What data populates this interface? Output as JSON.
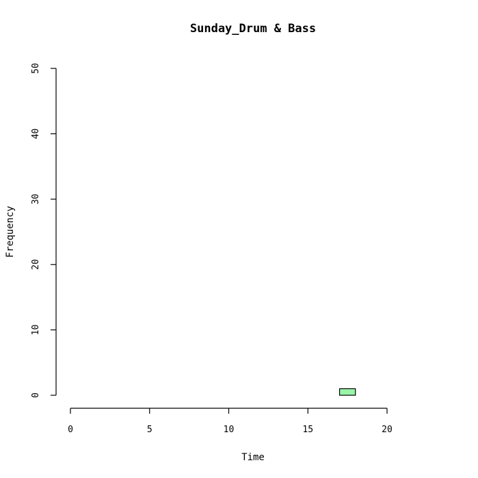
{
  "chart_data": {
    "type": "bar",
    "title": "Sunday_Drum & Bass",
    "xlabel": "Time",
    "ylabel": "Frequency",
    "xlim": [
      0,
      24
    ],
    "ylim": [
      0,
      50
    ],
    "x_ticks": [
      "0",
      "5",
      "10",
      "15",
      "20"
    ],
    "y_ticks": [
      "0",
      "10",
      "20",
      "30",
      "40",
      "50"
    ],
    "bins": [
      {
        "x0": 0,
        "x1": 1,
        "count": 0
      },
      {
        "x0": 1,
        "x1": 2,
        "count": 0
      },
      {
        "x0": 2,
        "x1": 3,
        "count": 0
      },
      {
        "x0": 3,
        "x1": 4,
        "count": 0
      },
      {
        "x0": 4,
        "x1": 5,
        "count": 0
      },
      {
        "x0": 5,
        "x1": 6,
        "count": 0
      },
      {
        "x0": 6,
        "x1": 7,
        "count": 0
      },
      {
        "x0": 7,
        "x1": 8,
        "count": 0
      },
      {
        "x0": 8,
        "x1": 9,
        "count": 0
      },
      {
        "x0": 9,
        "x1": 10,
        "count": 0
      },
      {
        "x0": 10,
        "x1": 11,
        "count": 0
      },
      {
        "x0": 11,
        "x1": 12,
        "count": 0
      },
      {
        "x0": 12,
        "x1": 13,
        "count": 0
      },
      {
        "x0": 13,
        "x1": 14,
        "count": 0
      },
      {
        "x0": 14,
        "x1": 15,
        "count": 0
      },
      {
        "x0": 15,
        "x1": 16,
        "count": 0
      },
      {
        "x0": 16,
        "x1": 17,
        "count": 0
      },
      {
        "x0": 17,
        "x1": 18,
        "count": 1
      },
      {
        "x0": 18,
        "x1": 19,
        "count": 0
      },
      {
        "x0": 19,
        "x1": 20,
        "count": 0
      },
      {
        "x0": 20,
        "x1": 21,
        "count": 0
      },
      {
        "x0": 21,
        "x1": 22,
        "count": 0
      },
      {
        "x0": 22,
        "x1": 23,
        "count": 0
      },
      {
        "x0": 23,
        "x1": 24,
        "count": 0
      }
    ],
    "bar_color": "#98f5a8",
    "bar_border_color": "#000000",
    "grid": false,
    "legend": "none"
  }
}
